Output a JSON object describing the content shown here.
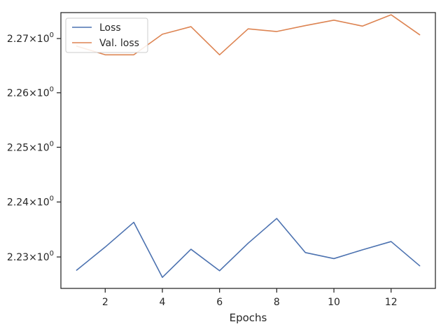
{
  "chart_data": {
    "type": "line",
    "title": "",
    "xlabel": "Epochs",
    "ylabel": "",
    "yscale": "log",
    "grid": false,
    "legend_position": "top-left",
    "x": [
      1,
      2,
      3,
      4,
      5,
      6,
      7,
      8,
      9,
      10,
      11,
      12,
      13
    ],
    "xlim": [
      0.45,
      13.55
    ],
    "ylim": [
      2.2243,
      2.2748
    ],
    "x_ticks": [
      2,
      4,
      6,
      8,
      10,
      12
    ],
    "x_tick_labels": [
      "2",
      "4",
      "6",
      "8",
      "10",
      "12"
    ],
    "y_ticks": [
      2.23,
      2.24,
      2.25,
      2.26,
      2.27
    ],
    "y_tick_labels": [
      "2.23",
      "2.24",
      "2.25",
      "2.26",
      "2.27"
    ],
    "y_tick_exponent": "0",
    "series": [
      {
        "name": "Loss",
        "color": "#4c72b0",
        "values": [
          2.2276,
          2.2318,
          2.2363,
          2.2263,
          2.2314,
          2.2275,
          2.2325,
          2.237,
          2.2308,
          2.2297,
          2.2313,
          2.2328,
          2.2284
        ]
      },
      {
        "name": "Val. loss",
        "color": "#dd8452",
        "values": [
          2.2686,
          2.267,
          2.267,
          2.2708,
          2.2722,
          2.267,
          2.2718,
          2.2713,
          2.2724,
          2.2734,
          2.2723,
          2.2744,
          2.2707
        ]
      }
    ]
  }
}
